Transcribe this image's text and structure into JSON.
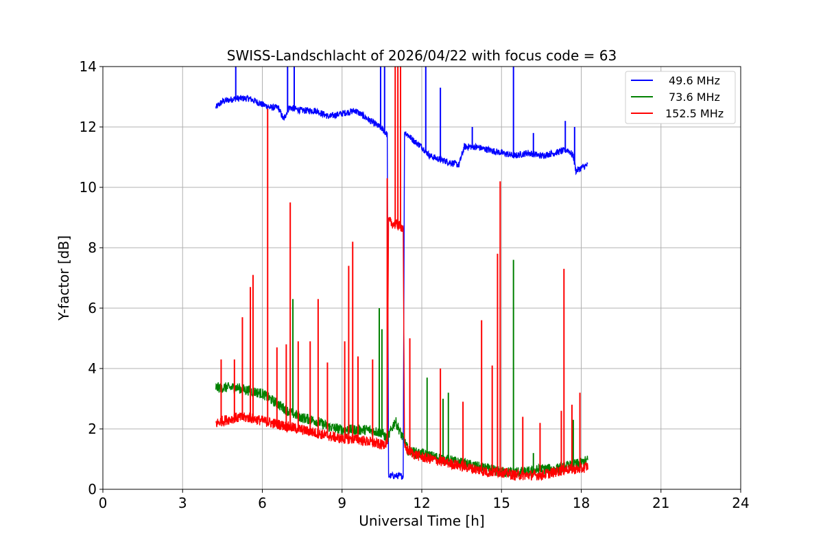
{
  "chart_data": {
    "type": "line",
    "title": "SWISS-Landschlacht of 2026/04/22 with focus code = 63",
    "xlabel": "Universal Time [h]",
    "ylabel": "Y-factor [dB]",
    "xlim": [
      0,
      24
    ],
    "ylim": [
      0,
      14
    ],
    "xticks": [
      0,
      3,
      6,
      9,
      12,
      15,
      18,
      21,
      24
    ],
    "yticks": [
      0,
      2,
      4,
      6,
      8,
      10,
      12,
      14
    ],
    "xtick_labels": [
      "0",
      "3",
      "6",
      "9",
      "12",
      "15",
      "18",
      "21",
      "24"
    ],
    "ytick_labels": [
      "0",
      "2",
      "4",
      "6",
      "8",
      "10",
      "12",
      "14"
    ],
    "grid": true,
    "legend_position": "top-right",
    "series": [
      {
        "name": "49.6 MHz",
        "color": "#0000ff",
        "x": [
          4.25,
          4.5,
          5.0,
          5.5,
          6.0,
          6.3,
          6.6,
          6.8,
          7.0,
          7.5,
          8.0,
          8.5,
          9.0,
          9.5,
          10.0,
          10.5,
          10.7,
          10.75,
          11.0,
          11.3,
          11.35,
          11.7,
          12.0,
          12.3,
          12.6,
          13.0,
          13.4,
          13.6,
          14.0,
          14.5,
          15.0,
          15.5,
          16.0,
          16.5,
          17.0,
          17.5,
          17.7,
          17.8,
          18.0,
          18.25
        ],
        "y": [
          12.6,
          12.8,
          12.9,
          12.9,
          12.7,
          12.6,
          12.6,
          12.2,
          12.6,
          12.5,
          12.5,
          12.3,
          12.4,
          12.5,
          12.2,
          11.9,
          11.7,
          0.4,
          0.4,
          0.4,
          11.8,
          11.5,
          11.3,
          11.0,
          10.9,
          10.8,
          10.7,
          11.3,
          11.3,
          11.2,
          11.1,
          11.0,
          11.1,
          11.0,
          11.1,
          11.2,
          11.0,
          10.5,
          10.6,
          10.7
        ],
        "spikes": [
          [
            5.0,
            14.0
          ],
          [
            6.95,
            14.0
          ],
          [
            7.2,
            14.0
          ],
          [
            10.45,
            14.0
          ],
          [
            10.6,
            14.0
          ],
          [
            12.15,
            14.0
          ],
          [
            12.7,
            13.3
          ],
          [
            13.9,
            12.0
          ],
          [
            15.45,
            14.0
          ],
          [
            16.2,
            11.8
          ],
          [
            17.4,
            12.2
          ],
          [
            17.75,
            12.0
          ]
        ]
      },
      {
        "name": "73.6 MHz",
        "color": "#008000",
        "x": [
          4.25,
          5.0,
          5.5,
          6.0,
          6.5,
          7.0,
          7.5,
          8.0,
          8.5,
          9.0,
          9.5,
          10.0,
          10.5,
          10.7,
          11.0,
          11.3,
          11.5,
          12.0,
          12.5,
          13.0,
          13.5,
          14.0,
          14.5,
          15.0,
          15.5,
          16.0,
          16.5,
          17.0,
          17.5,
          18.0,
          18.25
        ],
        "y": [
          3.3,
          3.3,
          3.2,
          3.1,
          2.8,
          2.5,
          2.3,
          2.2,
          2.0,
          1.9,
          1.9,
          1.9,
          1.8,
          1.6,
          2.2,
          1.6,
          1.2,
          1.1,
          1.0,
          0.9,
          0.8,
          0.7,
          0.6,
          0.5,
          0.5,
          0.5,
          0.6,
          0.6,
          0.7,
          0.8,
          0.9
        ],
        "spikes": [
          [
            7.15,
            6.3
          ],
          [
            10.4,
            6.0
          ],
          [
            10.5,
            5.3
          ],
          [
            12.2,
            3.7
          ],
          [
            12.8,
            3.0
          ],
          [
            13.0,
            3.2
          ],
          [
            15.45,
            7.6
          ],
          [
            16.2,
            1.2
          ],
          [
            17.7,
            2.3
          ]
        ]
      },
      {
        "name": "152.5 MHz",
        "color": "#ff0000",
        "x": [
          4.25,
          4.5,
          5.0,
          5.5,
          6.0,
          6.5,
          7.0,
          7.5,
          8.0,
          8.5,
          9.0,
          9.5,
          10.0,
          10.5,
          10.7,
          10.75,
          11.0,
          11.3,
          11.35,
          11.7,
          12.0,
          12.5,
          13.0,
          13.5,
          14.0,
          14.5,
          15.0,
          15.5,
          16.0,
          16.5,
          17.0,
          17.5,
          18.0,
          18.25
        ],
        "y": [
          2.1,
          2.2,
          2.3,
          2.3,
          2.2,
          2.1,
          2.0,
          1.9,
          1.8,
          1.7,
          1.6,
          1.6,
          1.5,
          1.4,
          1.5,
          8.8,
          8.7,
          8.6,
          1.3,
          1.1,
          1.0,
          0.9,
          0.8,
          0.7,
          0.6,
          0.5,
          0.5,
          0.4,
          0.4,
          0.4,
          0.5,
          0.6,
          0.6,
          0.7
        ],
        "spikes": [
          [
            4.45,
            4.3
          ],
          [
            4.95,
            4.3
          ],
          [
            5.25,
            5.7
          ],
          [
            5.55,
            6.7
          ],
          [
            5.65,
            7.1
          ],
          [
            6.2,
            12.6
          ],
          [
            6.55,
            4.7
          ],
          [
            6.9,
            4.8
          ],
          [
            7.05,
            9.5
          ],
          [
            7.35,
            4.9
          ],
          [
            7.8,
            4.9
          ],
          [
            8.1,
            6.3
          ],
          [
            8.45,
            4.2
          ],
          [
            9.1,
            4.9
          ],
          [
            9.25,
            7.4
          ],
          [
            9.4,
            8.2
          ],
          [
            9.6,
            4.4
          ],
          [
            10.15,
            4.3
          ],
          [
            10.7,
            10.3
          ],
          [
            11.0,
            14.0
          ],
          [
            11.1,
            14.0
          ],
          [
            11.2,
            14.0
          ],
          [
            11.55,
            5.0
          ],
          [
            12.7,
            4.0
          ],
          [
            13.55,
            2.9
          ],
          [
            14.25,
            5.6
          ],
          [
            14.65,
            4.1
          ],
          [
            14.85,
            7.8
          ],
          [
            14.95,
            10.2
          ],
          [
            15.8,
            2.4
          ],
          [
            16.45,
            2.2
          ],
          [
            17.25,
            2.6
          ],
          [
            17.35,
            7.3
          ],
          [
            17.65,
            2.8
          ],
          [
            17.95,
            3.2
          ]
        ]
      }
    ],
    "legend": [
      "49.6 MHz",
      "73.6 MHz",
      "152.5 MHz"
    ]
  }
}
